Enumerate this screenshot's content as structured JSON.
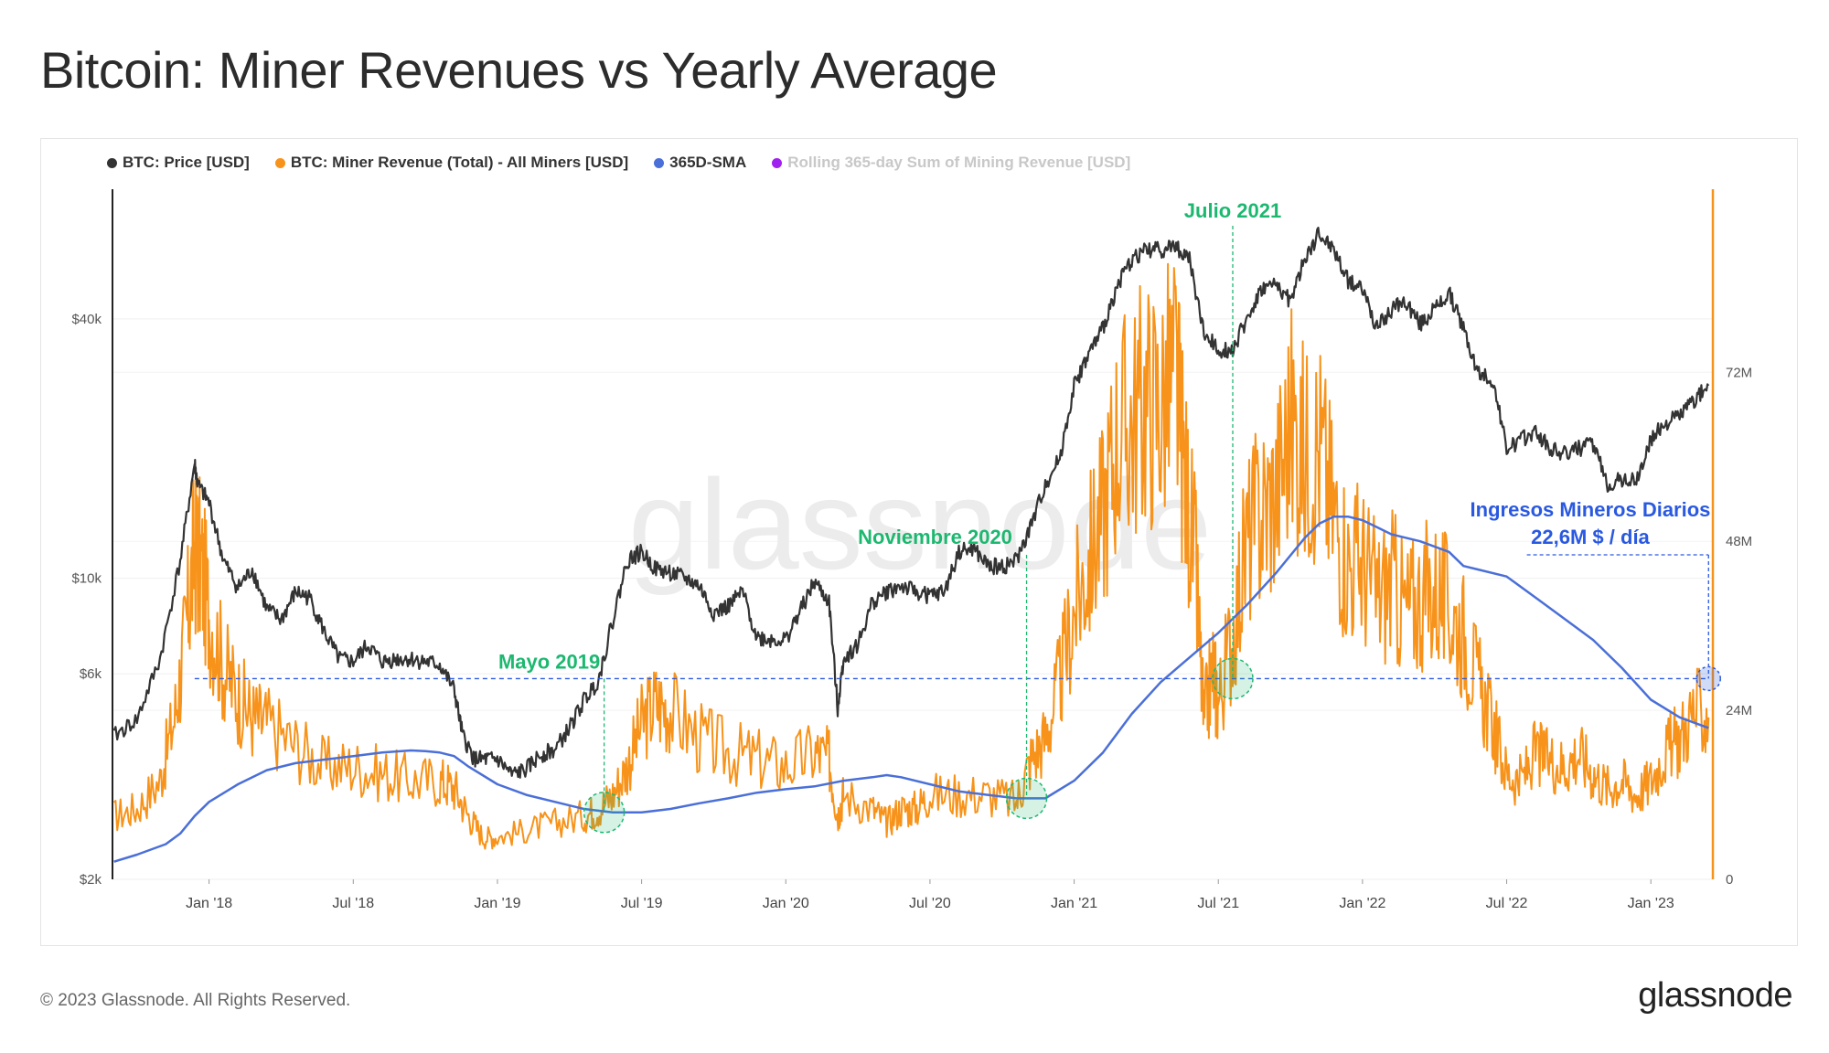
{
  "title": "Bitcoin: Miner Revenues vs Yearly Average",
  "footer": {
    "copyright": "© 2023 Glassnode. All Rights Reserved.",
    "brand": "glassnode"
  },
  "watermark": "glassnode",
  "chart_data": {
    "type": "line",
    "title": "Bitcoin: Miner Revenues vs Yearly Average",
    "legend": [
      {
        "name": "BTC: Price [USD]",
        "color": "#333333"
      },
      {
        "name": "BTC: Miner Revenue (Total) - All Miners [USD]",
        "color": "#f7931a"
      },
      {
        "name": "365D-SMA",
        "color": "#4a6fd8"
      },
      {
        "name": "Rolling 365-day Sum of Mining Revenue [USD]",
        "color": "#a020f0"
      }
    ],
    "x_ticks": [
      "Jan '18",
      "Jul '18",
      "Jan '19",
      "Jul '19",
      "Jan '20",
      "Jul '20",
      "Jan '21",
      "Jul '21",
      "Jan '22",
      "Jul '22",
      "Jan '23"
    ],
    "x_tick_years": [
      2018.0,
      2018.5,
      2019.0,
      2019.5,
      2020.0,
      2020.5,
      2021.0,
      2021.5,
      2022.0,
      2022.5,
      2023.0
    ],
    "x_range": [
      2017.665,
      2023.215
    ],
    "y_left": {
      "scale": "log",
      "range": [
        2000,
        80000
      ],
      "ticks": [
        {
          "v": 2000,
          "label": "$2k"
        },
        {
          "v": 6000,
          "label": "$6k"
        },
        {
          "v": 10000,
          "label": "$10k"
        },
        {
          "v": 40000,
          "label": "$40k"
        }
      ]
    },
    "y_right": {
      "scale": "linear",
      "range": [
        0,
        98
      ],
      "unit": "M USD",
      "ticks": [
        {
          "v": 0,
          "label": "0"
        },
        {
          "v": 24,
          "label": "24M"
        },
        {
          "v": 48,
          "label": "48M"
        },
        {
          "v": 72,
          "label": "72M"
        }
      ]
    },
    "series": [
      {
        "name": "BTC: Price [USD]",
        "axis": "left",
        "x": [
          2017.67,
          2017.75,
          2017.83,
          2017.9,
          2017.95,
          2017.96,
          2018.0,
          2018.05,
          2018.1,
          2018.15,
          2018.2,
          2018.25,
          2018.3,
          2018.35,
          2018.4,
          2018.45,
          2018.5,
          2018.55,
          2018.6,
          2018.65,
          2018.7,
          2018.75,
          2018.8,
          2018.85,
          2018.88,
          2018.92,
          2018.96,
          2019.0,
          2019.05,
          2019.1,
          2019.15,
          2019.2,
          2019.25,
          2019.3,
          2019.35,
          2019.4,
          2019.45,
          2019.5,
          2019.55,
          2019.6,
          2019.65,
          2019.7,
          2019.75,
          2019.8,
          2019.85,
          2019.9,
          2019.95,
          2020.0,
          2020.05,
          2020.1,
          2020.15,
          2020.18,
          2020.2,
          2020.25,
          2020.3,
          2020.35,
          2020.4,
          2020.45,
          2020.5,
          2020.55,
          2020.6,
          2020.65,
          2020.7,
          2020.75,
          2020.8,
          2020.85,
          2020.9,
          2020.95,
          2021.0,
          2021.05,
          2021.1,
          2021.15,
          2021.2,
          2021.25,
          2021.3,
          2021.35,
          2021.4,
          2021.45,
          2021.5,
          2021.55,
          2021.6,
          2021.65,
          2021.7,
          2021.75,
          2021.8,
          2021.85,
          2021.9,
          2021.95,
          2022.0,
          2022.05,
          2022.1,
          2022.15,
          2022.2,
          2022.25,
          2022.3,
          2022.35,
          2022.4,
          2022.45,
          2022.5,
          2022.55,
          2022.6,
          2022.65,
          2022.7,
          2022.75,
          2022.8,
          2022.85,
          2022.9,
          2022.95,
          2023.0,
          2023.05,
          2023.1,
          2023.15,
          2023.2
        ],
        "values": [
          4300,
          4700,
          6500,
          11000,
          18500,
          16500,
          15000,
          11000,
          9500,
          10500,
          8500,
          8000,
          9300,
          9000,
          7500,
          6500,
          6400,
          7000,
          6400,
          6500,
          6500,
          6400,
          6300,
          5500,
          4300,
          3800,
          3800,
          3800,
          3500,
          3600,
          3900,
          4000,
          4500,
          5200,
          5800,
          8000,
          11000,
          11500,
          10500,
          10300,
          10000,
          9600,
          8300,
          8600,
          9300,
          7300,
          7200,
          7200,
          8400,
          9800,
          8800,
          5000,
          6500,
          7000,
          8800,
          9300,
          9600,
          9300,
          9100,
          9300,
          11500,
          11700,
          10700,
          10600,
          11000,
          13200,
          16500,
          19000,
          28000,
          33000,
          38000,
          48000,
          55000,
          58000,
          58000,
          59000,
          55000,
          37000,
          34000,
          34000,
          40000,
          47000,
          48000,
          44000,
          55000,
          63000,
          58000,
          49000,
          47000,
          38000,
          42000,
          44000,
          39000,
          42000,
          46000,
          38000,
          30000,
          29000,
          20000,
          21000,
          22000,
          20000,
          19500,
          20000,
          20500,
          16500,
          17000,
          16800,
          21000,
          23000,
          24000,
          26000,
          28000
        ]
      },
      {
        "name": "BTC: Miner Revenue (Total) - All Miners [USD]",
        "axis": "right",
        "x": [
          2017.67,
          2017.75,
          2017.83,
          2017.88,
          2017.92,
          2017.95,
          2017.97,
          2018.0,
          2018.05,
          2018.1,
          2018.15,
          2018.2,
          2018.3,
          2018.4,
          2018.5,
          2018.6,
          2018.7,
          2018.8,
          2018.85,
          2018.9,
          2018.95,
          2019.0,
          2019.1,
          2019.2,
          2019.3,
          2019.35,
          2019.4,
          2019.45,
          2019.5,
          2019.55,
          2019.6,
          2019.7,
          2019.8,
          2019.9,
          2020.0,
          2020.1,
          2020.15,
          2020.18,
          2020.2,
          2020.3,
          2020.35,
          2020.4,
          2020.45,
          2020.5,
          2020.6,
          2020.7,
          2020.8,
          2020.85,
          2020.9,
          2020.95,
          2021.0,
          2021.05,
          2021.1,
          2021.15,
          2021.2,
          2021.25,
          2021.3,
          2021.35,
          2021.38,
          2021.42,
          2021.45,
          2021.48,
          2021.5,
          2021.55,
          2021.6,
          2021.65,
          2021.7,
          2021.75,
          2021.8,
          2021.85,
          2021.9,
          2021.95,
          2022.0,
          2022.05,
          2022.1,
          2022.15,
          2022.2,
          2022.25,
          2022.3,
          2022.35,
          2022.4,
          2022.45,
          2022.5,
          2022.55,
          2022.6,
          2022.65,
          2022.7,
          2022.75,
          2022.8,
          2022.85,
          2022.9,
          2022.95,
          2023.0,
          2023.05,
          2023.1,
          2023.15,
          2023.2
        ],
        "values": [
          9,
          10,
          14,
          23,
          35,
          47,
          45,
          38,
          30,
          26,
          23,
          22,
          19,
          16,
          16,
          15,
          14,
          14,
          13,
          9,
          6,
          6,
          7,
          8,
          9,
          10,
          12,
          16,
          22,
          25,
          24,
          20,
          18,
          17,
          16,
          18,
          17,
          9,
          12,
          10,
          8,
          10,
          10,
          12,
          12,
          12,
          11,
          17,
          20,
          28,
          38,
          45,
          52,
          63,
          65,
          68,
          67,
          72,
          58,
          45,
          22,
          30,
          25,
          35,
          48,
          52,
          55,
          65,
          60,
          62,
          52,
          45,
          45,
          40,
          42,
          38,
          40,
          41,
          38,
          35,
          28,
          22,
          15,
          14,
          18,
          17,
          16,
          18,
          15,
          13,
          14,
          12,
          14,
          18,
          20,
          24,
          23
        ]
      },
      {
        "name": "365D-SMA",
        "axis": "right",
        "x": [
          2017.67,
          2017.75,
          2017.85,
          2017.9,
          2017.95,
          2018.0,
          2018.1,
          2018.2,
          2018.3,
          2018.4,
          2018.5,
          2018.6,
          2018.7,
          2018.75,
          2018.8,
          2018.85,
          2018.9,
          2019.0,
          2019.1,
          2019.2,
          2019.3,
          2019.4,
          2019.5,
          2019.6,
          2019.7,
          2019.8,
          2019.9,
          2020.0,
          2020.1,
          2020.2,
          2020.3,
          2020.35,
          2020.4,
          2020.5,
          2020.6,
          2020.7,
          2020.8,
          2020.9,
          2021.0,
          2021.1,
          2021.2,
          2021.3,
          2021.4,
          2021.5,
          2021.6,
          2021.7,
          2021.8,
          2021.85,
          2021.9,
          2021.95,
          2022.0,
          2022.05,
          2022.1,
          2022.2,
          2022.3,
          2022.35,
          2022.4,
          2022.5,
          2022.6,
          2022.7,
          2022.8,
          2022.9,
          2023.0,
          2023.1,
          2023.2
        ],
        "values": [
          2.5,
          3.5,
          5,
          6.5,
          9,
          11,
          13.5,
          15.5,
          16.5,
          17,
          17.5,
          18,
          18.3,
          18.2,
          18,
          17.5,
          16,
          13.5,
          12,
          11,
          10,
          9.5,
          9.5,
          10,
          10.8,
          11.5,
          12.3,
          12.8,
          13.2,
          14,
          14.5,
          14.8,
          14.5,
          13.5,
          12.5,
          12,
          11.5,
          11.5,
          14,
          18,
          23.5,
          28,
          31.5,
          35,
          39,
          43.5,
          48.5,
          50.5,
          51.5,
          51.5,
          51,
          50,
          49,
          48,
          46.5,
          44.5,
          44,
          43,
          40,
          37,
          34,
          30,
          25.5,
          23,
          21.5
        ]
      }
    ],
    "annotations": [
      {
        "label": "Mayo 2019",
        "x": 2019.37,
        "value_on": "365D-SMA",
        "y_right": 9.5,
        "color": "#1db870"
      },
      {
        "label": "Noviembre 2020",
        "x": 2020.835,
        "y_right": 11.5,
        "color": "#1db870"
      },
      {
        "label": "Julio 2021",
        "x": 2021.55,
        "y_right": 28.5,
        "color": "#1db870"
      },
      {
        "label": "Ingresos Mineros Diarios",
        "label2": "22,6M $ / día",
        "x": 2023.2,
        "y_right": 28.5,
        "color": "#2a59e0"
      }
    ],
    "reference_line_value_right": 28.5
  }
}
